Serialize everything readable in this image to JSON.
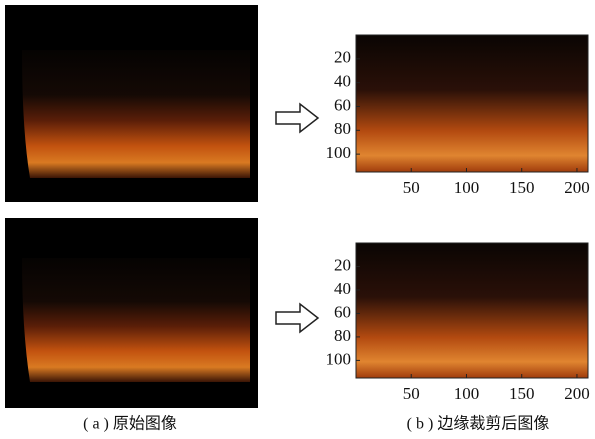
{
  "figure": {
    "panels": [
      {
        "xlim": [
          0,
          210
        ],
        "ylim": [
          0,
          115
        ],
        "xticks": [
          50,
          100,
          150,
          200
        ],
        "yticks": [
          20,
          40,
          60,
          80,
          100
        ]
      },
      {
        "xlim": [
          0,
          210
        ],
        "ylim": [
          0,
          115
        ],
        "xticks": [
          50,
          100,
          150,
          200
        ],
        "yticks": [
          20,
          40,
          60,
          80,
          100
        ]
      }
    ],
    "captions": [
      "( a ) 原始图像",
      "( b ) 边缘裁剪后图像"
    ]
  }
}
